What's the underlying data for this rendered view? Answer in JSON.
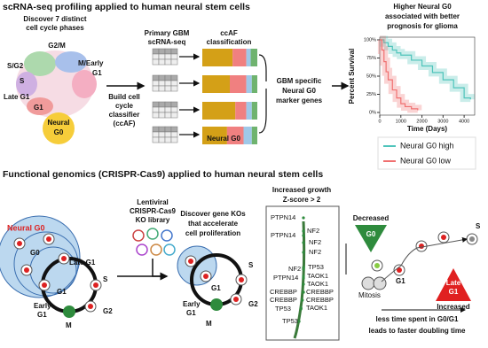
{
  "top": {
    "title": "scRNA-seq profiling applied to human neural stem cells",
    "discover": [
      "Discover 7 distinct",
      "cell cycle phases"
    ],
    "phases": {
      "g2m": "G2/M",
      "sg2": "S/G2",
      "mearly": [
        "M/Early",
        "G1"
      ],
      "s": "S",
      "lateg1": "Late G1",
      "g1": "G1",
      "neuralg0": [
        "Neural",
        "G0"
      ]
    },
    "build": [
      "Build cell",
      "cycle",
      "classifier",
      "(ccAF)"
    ],
    "primary": [
      "Primary GBM",
      "scRNA-seq"
    ],
    "ccaf": [
      "ccAF",
      "classification"
    ],
    "neural_g0": "Neural G0",
    "markers": [
      "GBM specific",
      "Neural G0",
      "marker genes"
    ]
  },
  "chart_data": {
    "type": "line",
    "title": [
      "Higher Neural G0",
      "associated with better",
      "prognosis for glioma"
    ],
    "x_label": "Time (Days)",
    "y_label": "Percent Survival",
    "xlim": [
      0,
      4500
    ],
    "ylim": [
      0,
      100
    ],
    "xticks": [
      0,
      1000,
      2000,
      3000,
      4000
    ],
    "yticks": [
      {
        "value": 0,
        "label": "0%"
      },
      {
        "value": 25,
        "label": "25%"
      },
      {
        "value": 50,
        "label": "50%"
      },
      {
        "value": 75,
        "label": "75%"
      },
      {
        "value": 100,
        "label": "100%"
      }
    ],
    "series": [
      {
        "name": "Neural G0 high",
        "color": "#4fc4bb",
        "x": [
          0,
          200,
          400,
          600,
          800,
          1000,
          1500,
          2000,
          2500,
          3000,
          3500,
          4000,
          4300
        ],
        "values": [
          100,
          96,
          91,
          86,
          82,
          79,
          72,
          64,
          55,
          45,
          34,
          20,
          18
        ]
      },
      {
        "name": "Neural G0 low",
        "color": "#f07070",
        "x": [
          0,
          100,
          200,
          300,
          400,
          600,
          800,
          1000,
          1200,
          1500,
          1800
        ],
        "values": [
          100,
          86,
          70,
          56,
          45,
          31,
          20,
          12,
          8,
          5,
          3
        ]
      }
    ]
  },
  "bottom": {
    "title": "Functional genomics (CRISPR-Cas9) applied to human neural stem cells",
    "left": {
      "neural_g0": "Neural G0",
      "g0": "G0",
      "late_g1": "Late G1",
      "g1": "G1",
      "s": "S",
      "early": [
        "Early",
        "G1"
      ],
      "m": "M",
      "g2": "G2"
    },
    "library": [
      "Lentiviral",
      "CRISPR-Cas9",
      "KO library"
    ],
    "discover": [
      "Discover gene KOs",
      "that accelerate",
      "cell proliferation"
    ],
    "mid": {
      "s": "S",
      "g1": "G1",
      "early": [
        "Early",
        "G1"
      ],
      "m": "M",
      "g2": "G2"
    },
    "screen": {
      "title": [
        "Increased growth",
        "Z-score > 2"
      ],
      "genes": [
        "PTPN14",
        "PTPN14",
        "NF2",
        "NF2",
        "NF2",
        "NF2",
        "TP53",
        "PTPN14",
        "TAOK1",
        "TAOK1",
        "CREBBP",
        "CREBBP",
        "CREBBP",
        "CREBBP",
        "TP53",
        "TAOK1",
        "TP53"
      ]
    },
    "right": {
      "decreased": "Decreased",
      "g0": "G0",
      "late": [
        "Late",
        "G1"
      ],
      "increased": "Increased",
      "s": "S",
      "g1": "G1",
      "mitosis": "Mitosis",
      "conclusion": [
        "less time spent in G0/G1",
        "leads to faster doubling time"
      ]
    }
  }
}
